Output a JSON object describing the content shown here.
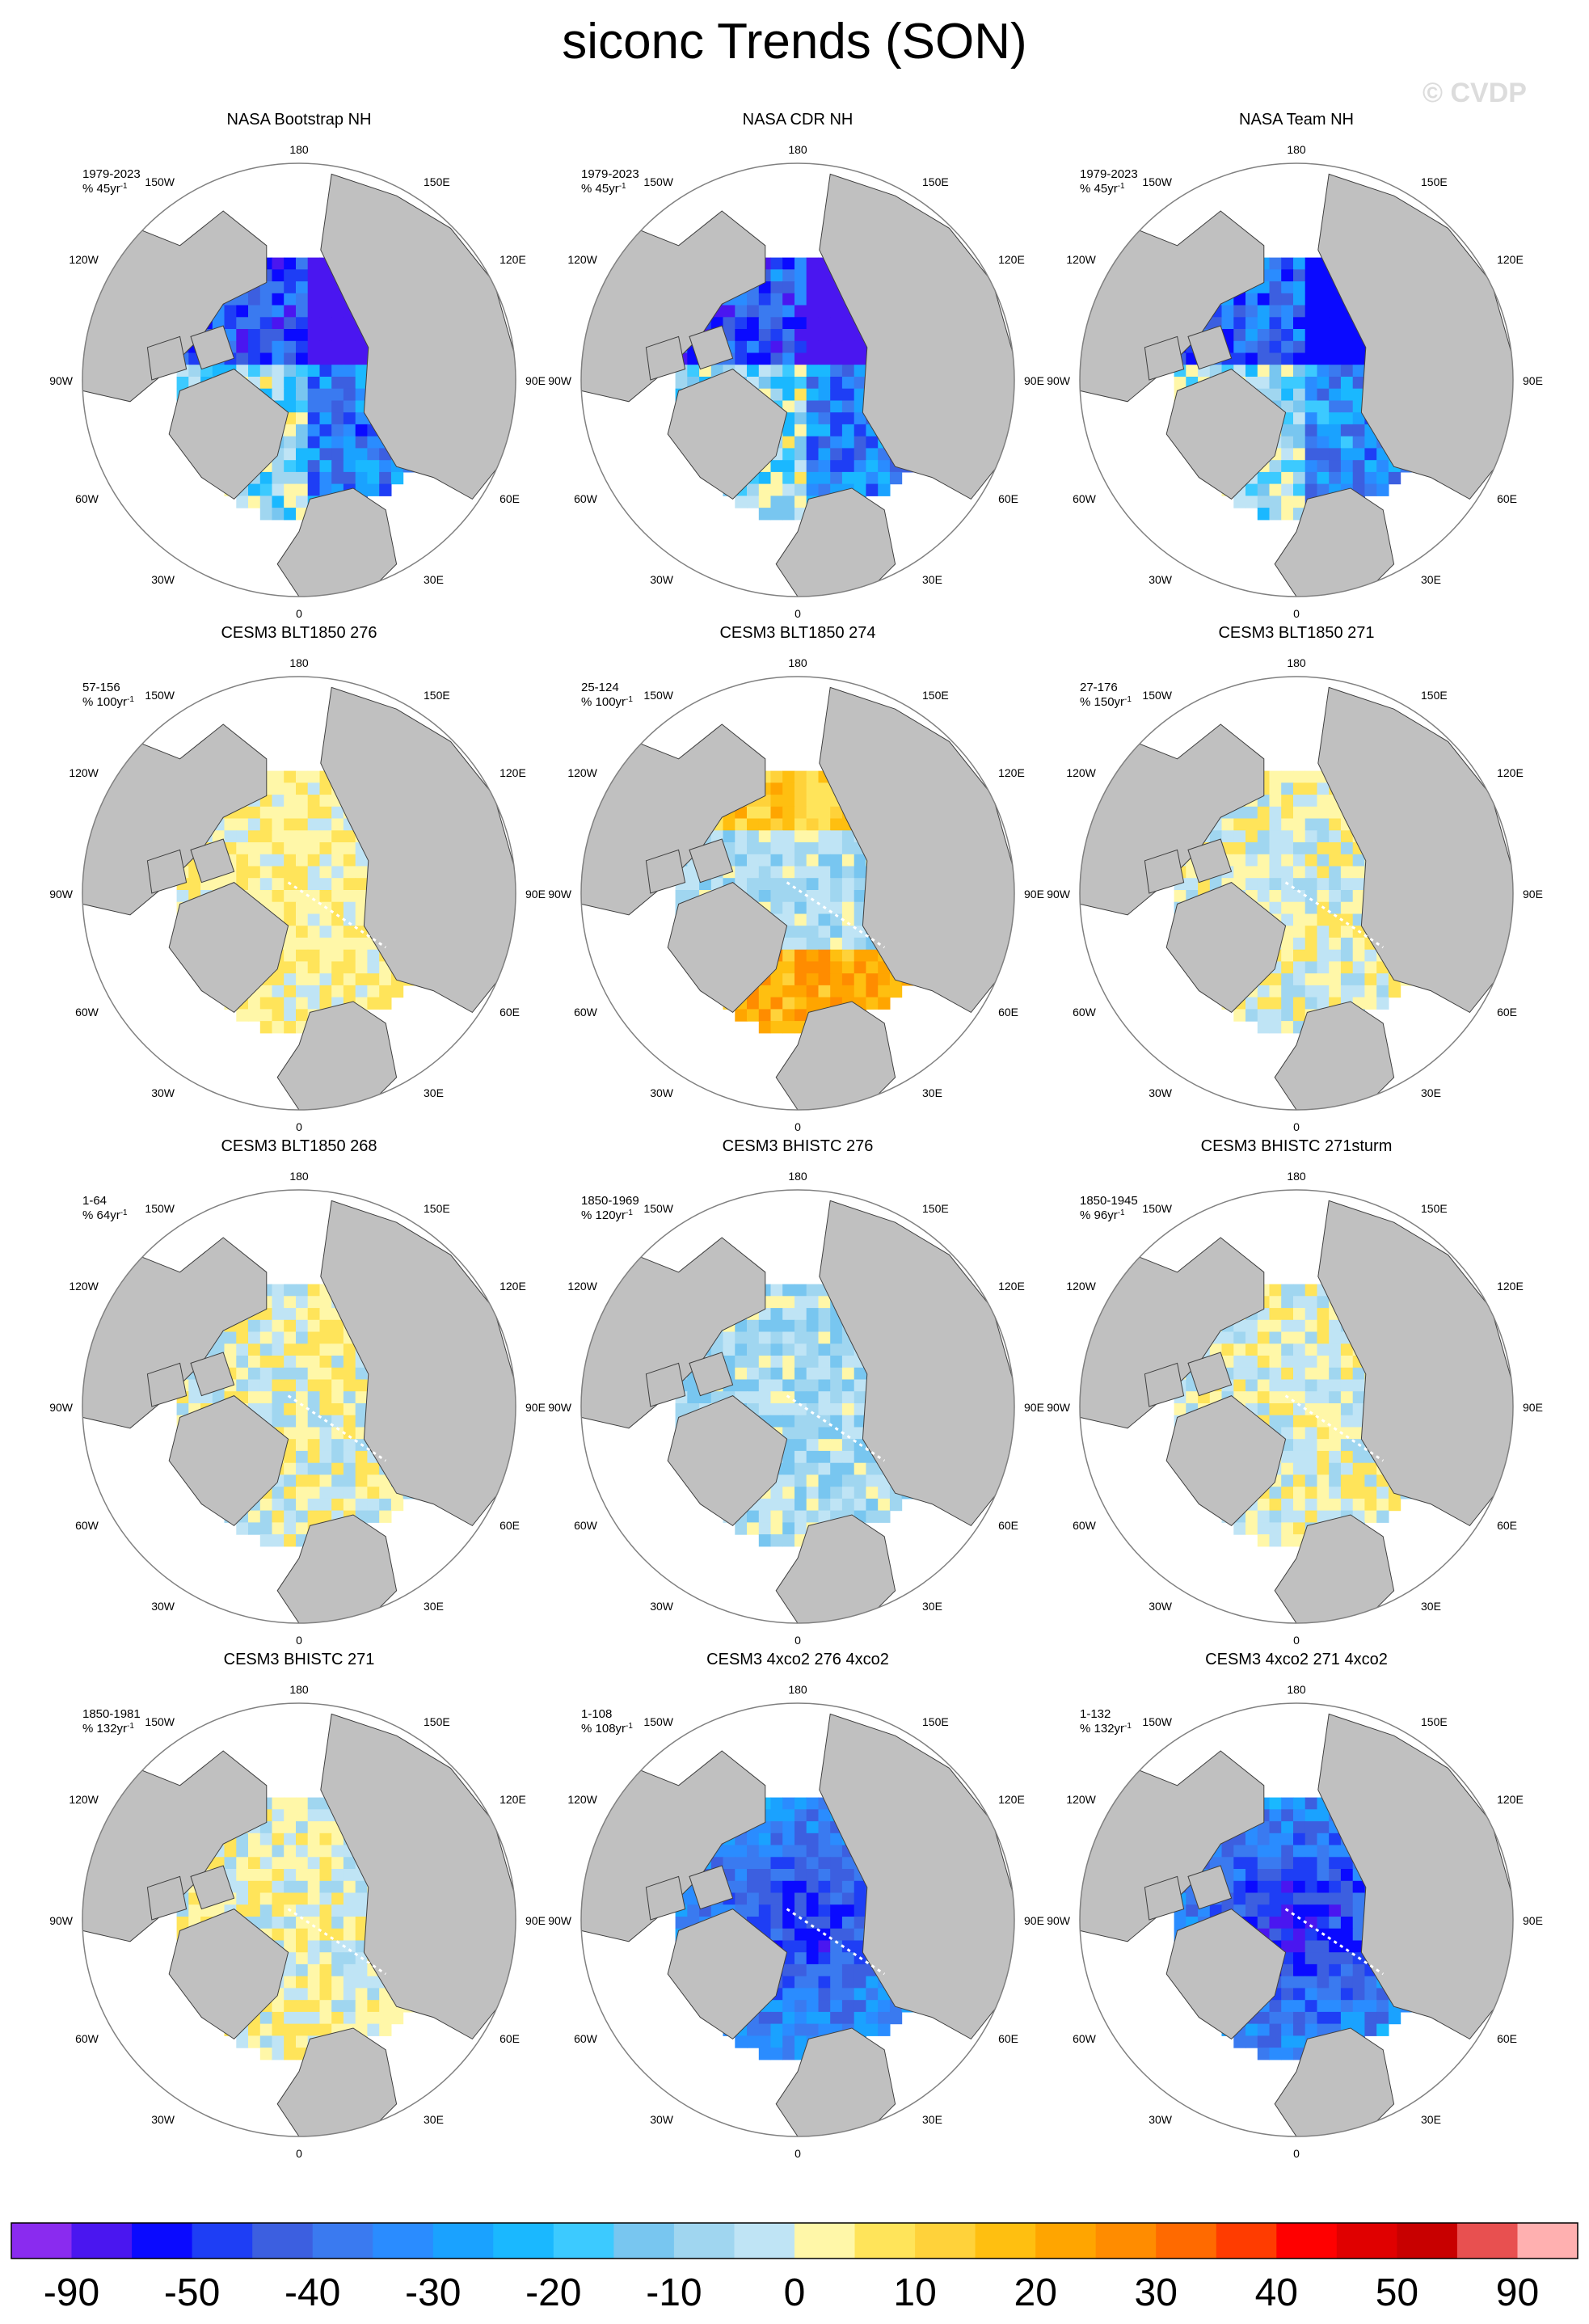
{
  "figure": {
    "title": "siconc Trends (SON)",
    "watermark": "© CVDP"
  },
  "chart_data": [
    {
      "type": "heatmap",
      "title": "NASA Bootstrap NH",
      "period": "1979-2023",
      "units": "% 45yr",
      "units_sup": "-1",
      "pattern": "obs",
      "intensity": 0.95,
      "seed": 11
    },
    {
      "type": "heatmap",
      "title": "NASA CDR NH",
      "period": "1979-2023",
      "units": "% 45yr",
      "units_sup": "-1",
      "pattern": "obs",
      "intensity": 0.95,
      "seed": 12
    },
    {
      "type": "heatmap",
      "title": "NASA Team NH",
      "period": "1979-2023",
      "units": "% 45yr",
      "units_sup": "-1",
      "pattern": "obs",
      "intensity": 0.85,
      "seed": 13
    },
    {
      "type": "heatmap",
      "title": "CESM3 BLT1850 276",
      "period": "57-156",
      "units": "% 100yr",
      "units_sup": "-1",
      "pattern": "mixed_pos",
      "intensity": 0.35,
      "seed": 21
    },
    {
      "type": "heatmap",
      "title": "CESM3 BLT1850 274",
      "period": "25-124",
      "units": "% 100yr",
      "units_sup": "-1",
      "pattern": "mixed_warm",
      "intensity": 0.6,
      "seed": 22
    },
    {
      "type": "heatmap",
      "title": "CESM3 BLT1850 271",
      "period": "27-176",
      "units": "% 150yr",
      "units_sup": "-1",
      "pattern": "mixed",
      "intensity": 0.45,
      "seed": 23
    },
    {
      "type": "heatmap",
      "title": "CESM3 BLT1850 268",
      "period": "1-64",
      "units": "% 64yr",
      "units_sup": "-1",
      "pattern": "mixed",
      "intensity": 0.45,
      "seed": 31
    },
    {
      "type": "heatmap",
      "title": "CESM3 BHISTC 276",
      "period": "1850-1969",
      "units": "% 120yr",
      "units_sup": "-1",
      "pattern": "mixed_neg",
      "intensity": 0.45,
      "seed": 32
    },
    {
      "type": "heatmap",
      "title": "CESM3 BHISTC 271sturm",
      "period": "1850-1945",
      "units": "% 96yr",
      "units_sup": "-1",
      "pattern": "mixed",
      "intensity": 0.35,
      "seed": 33
    },
    {
      "type": "heatmap",
      "title": "CESM3 BHISTC 271",
      "period": "1850-1981",
      "units": "% 132yr",
      "units_sup": "-1",
      "pattern": "mixed",
      "intensity": 0.4,
      "seed": 41
    },
    {
      "type": "heatmap",
      "title": "CESM3 4xco2 276 4xco2",
      "period": "1-108",
      "units": "% 108yr",
      "units_sup": "-1",
      "pattern": "strong_neg",
      "intensity": 0.9,
      "seed": 42
    },
    {
      "type": "heatmap",
      "title": "CESM3 4xco2 271 4xco2",
      "period": "1-132",
      "units": "% 132yr",
      "units_sup": "-1",
      "pattern": "strong_neg",
      "intensity": 0.95,
      "seed": 43
    }
  ],
  "map_labels": {
    "top": "180",
    "left": "90W",
    "right": "90E",
    "bottom": "0",
    "ul1": "150W",
    "ul2": "120W",
    "ur1": "150E",
    "ur2": "120E",
    "ll1": "60W",
    "ll2": "30W",
    "lr1": "60E",
    "lr2": "30E"
  },
  "colorbar": {
    "colors": [
      "#8a2bef",
      "#4a16f0",
      "#0a0aff",
      "#1e3ef5",
      "#3c5fe0",
      "#3a7af0",
      "#2a8cff",
      "#1aa2ff",
      "#1ab8ff",
      "#3ccaff",
      "#78c6f0",
      "#a0d6f0",
      "#bfe4f5",
      "#fff7a8",
      "#ffe45a",
      "#ffd23a",
      "#ffbf10",
      "#ffa500",
      "#ff8c00",
      "#ff6a00",
      "#ff3c00",
      "#ff0000",
      "#e00000",
      "#c80000",
      "#e85050",
      "#ffb0b0"
    ],
    "tick_labels": [
      "-90",
      "-50",
      "-40",
      "-30",
      "-20",
      "-10",
      "0",
      "10",
      "20",
      "30",
      "40",
      "50",
      "90"
    ]
  },
  "colors": {
    "land": "#c0c0c0",
    "ocean": "#ffffff",
    "coast": "#404040"
  }
}
